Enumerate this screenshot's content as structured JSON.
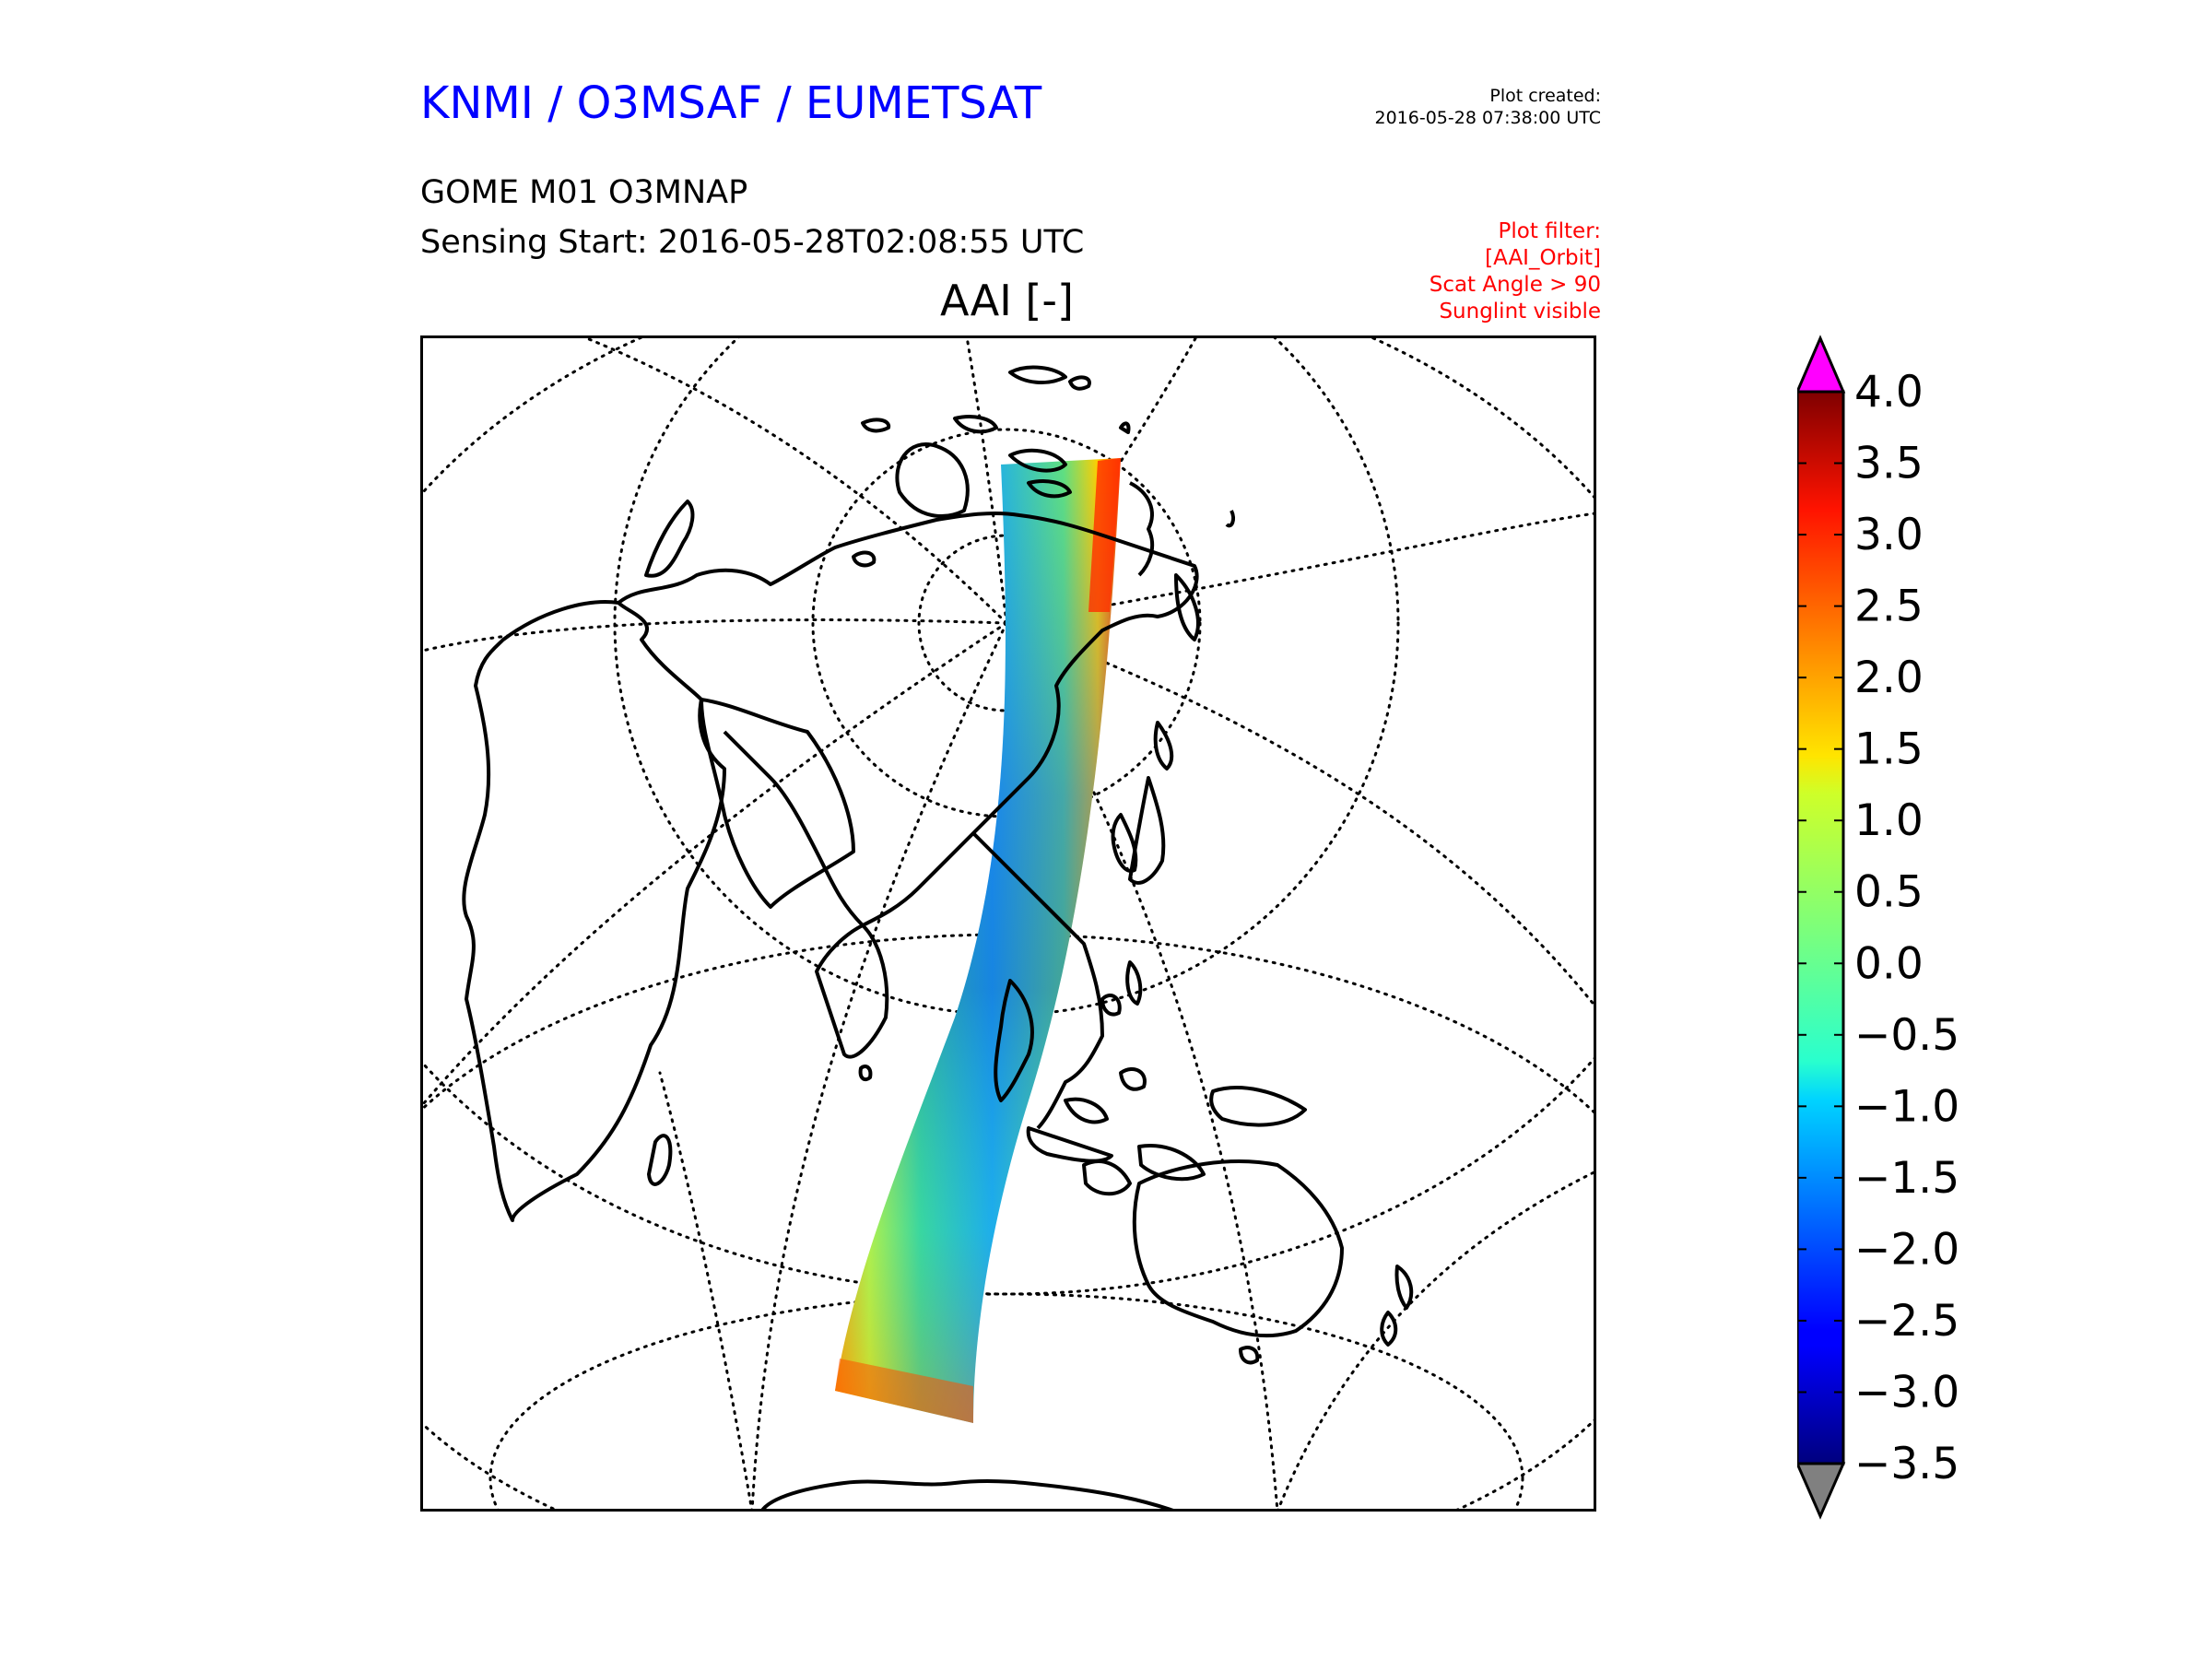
{
  "header": {
    "org_title": "KNMI / O3MSAF / EUMETSAT",
    "product": "GOME M01 O3MNAP",
    "sensing_start": "Sensing Start: 2016-05-28T02:08:55 UTC",
    "plot_title": "AAI [-]",
    "created_label": "Plot created:",
    "created_value": "2016-05-28 07:38:00 UTC",
    "filter_lines": [
      "Plot filter:",
      "[AAI_Orbit]",
      "Scat Angle > 90",
      "Sunglint visible"
    ]
  },
  "colors": {
    "title": "#0000ff",
    "filter_text": "#ff0000",
    "over_extend": "#ff00ff",
    "under_extend": "#808080"
  },
  "colorbar": {
    "colormap": "jet",
    "min": -3.5,
    "max": 4.0,
    "extend": "both",
    "tick_labels": [
      "4.0",
      "3.5",
      "3.0",
      "2.5",
      "2.0",
      "1.5",
      "1.0",
      "0.5",
      "0.0",
      "−0.5",
      "−1.0",
      "−1.5",
      "−2.0",
      "−2.5",
      "−3.0",
      "−3.5"
    ]
  },
  "map": {
    "projection": "orthographic-like view centered over Asia / Western Pacific",
    "graticule": "dotted",
    "coastlines": "black",
    "swath": "single GOME orbit strip from Arctic to Southern Ocean"
  }
}
